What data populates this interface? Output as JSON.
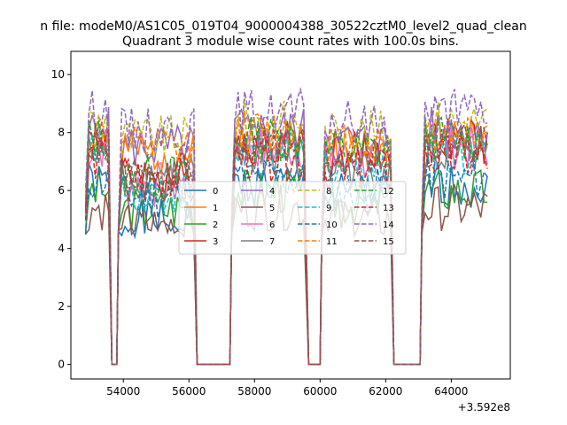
{
  "chart_data": {
    "type": "line",
    "suptitle": "n file: modeM0/AS1C05_019T04_9000004388_30522cztM0_level2_quad_clean",
    "title": "Quadrant 3 module wise count rates with 100.0s bins.",
    "xlabel": "",
    "ylabel": "",
    "x_offset_label": "+3.592e8",
    "xlim": [
      52400,
      65800
    ],
    "ylim": [
      -0.5,
      10.8
    ],
    "xticks": [
      54000,
      56000,
      58000,
      60000,
      62000,
      64000
    ],
    "xtick_labels": [
      "54000",
      "56000",
      "58000",
      "60000",
      "62000",
      "64000"
    ],
    "yticks": [
      0,
      2,
      4,
      6,
      8,
      10
    ],
    "ytick_labels": [
      "0",
      "2",
      "4",
      "6",
      "8",
      "10"
    ],
    "legend_position": "center",
    "gaps": [
      [
        53550,
        53850
      ],
      [
        56150,
        57300
      ],
      [
        59550,
        60050
      ],
      [
        62150,
        63100
      ]
    ],
    "segments": [
      [
        52850,
        53550
      ],
      [
        53850,
        56150
      ],
      [
        57300,
        59550
      ],
      [
        60050,
        62150
      ],
      [
        63100,
        65150
      ]
    ],
    "series": [
      {
        "name": "0",
        "color": "#1f77b4",
        "dash": "solid",
        "level": 6.2
      },
      {
        "name": "1",
        "color": "#ff7f0e",
        "dash": "solid",
        "level": 7.9
      },
      {
        "name": "2",
        "color": "#2ca02c",
        "dash": "solid",
        "level": 6.0
      },
      {
        "name": "3",
        "color": "#d62728",
        "dash": "solid",
        "level": 7.7
      },
      {
        "name": "4",
        "color": "#9467bd",
        "dash": "solid",
        "level": 8.1
      },
      {
        "name": "5",
        "color": "#8c564b",
        "dash": "solid",
        "level": 5.4
      },
      {
        "name": "6",
        "color": "#e377c2",
        "dash": "solid",
        "level": 7.5
      },
      {
        "name": "7",
        "color": "#7f7f7f",
        "dash": "solid",
        "level": 7.2
      },
      {
        "name": "8",
        "color": "#bcbd22",
        "dash": "dashed",
        "level": 8.4
      },
      {
        "name": "9",
        "color": "#17becf",
        "dash": "dashed",
        "level": 7.3
      },
      {
        "name": "10",
        "color": "#1f77b4",
        "dash": "dashed",
        "level": 6.4
      },
      {
        "name": "11",
        "color": "#ff7f0e",
        "dash": "dashed",
        "level": 8.0
      },
      {
        "name": "12",
        "color": "#2ca02c",
        "dash": "dashed",
        "level": 7.8
      },
      {
        "name": "13",
        "color": "#d62728",
        "dash": "dashed",
        "level": 7.1
      },
      {
        "name": "14",
        "color": "#9467bd",
        "dash": "dashed",
        "level": 8.7
      },
      {
        "name": "15",
        "color": "#8c564b",
        "dash": "dashed",
        "level": 7.6
      }
    ]
  }
}
